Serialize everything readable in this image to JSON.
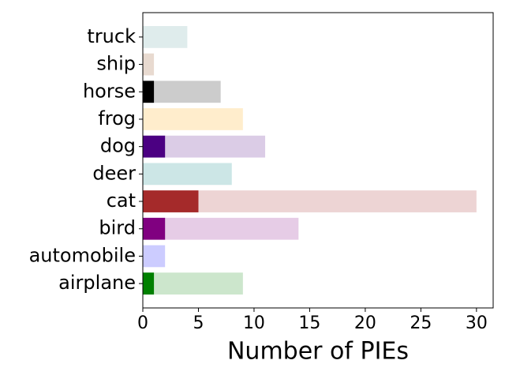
{
  "chart_data": {
    "type": "barh",
    "xlabel": "Number of PIEs",
    "categories": [
      "airplane",
      "automobile",
      "bird",
      "cat",
      "deer",
      "dog",
      "frog",
      "horse",
      "ship",
      "truck"
    ],
    "colors": [
      "#008000",
      "#0000ff",
      "#800080",
      "#a52a2a",
      "#008080",
      "#4b0082",
      "#ffa500",
      "#000000",
      "#8b4513",
      "#5f9ea0"
    ],
    "series": [
      {
        "values": [
          9,
          2,
          14,
          30,
          8,
          11,
          9,
          7,
          1,
          4
        ],
        "opacity": 0.2
      },
      {
        "values": [
          1,
          0,
          2,
          5,
          0,
          2,
          0,
          1,
          0,
          0
        ],
        "opacity": 1
      }
    ],
    "xlim": [
      0,
      31.5
    ],
    "xticks": [
      0,
      5,
      10,
      15,
      20,
      25,
      30
    ]
  }
}
